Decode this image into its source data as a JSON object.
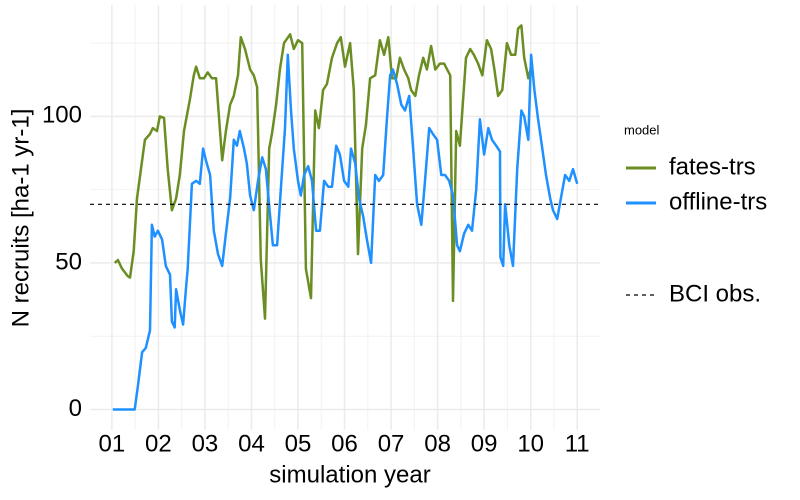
{
  "chart_data": {
    "type": "line",
    "xlabel": "simulation year",
    "ylabel": "N recruits [ha-1 yr-1]",
    "legend_title": "model",
    "legend": "right",
    "grid": true,
    "xlim": [
      0.53,
      11.49
    ],
    "ylim": [
      -7,
      138
    ],
    "xticks": [
      {
        "value": 1,
        "label": "01"
      },
      {
        "value": 2,
        "label": "02"
      },
      {
        "value": 3,
        "label": "03"
      },
      {
        "value": 4,
        "label": "04"
      },
      {
        "value": 5,
        "label": "05"
      },
      {
        "value": 6,
        "label": "06"
      },
      {
        "value": 7,
        "label": "07"
      },
      {
        "value": 8,
        "label": "08"
      },
      {
        "value": 9,
        "label": "09"
      },
      {
        "value": 10,
        "label": "10"
      },
      {
        "value": 11,
        "label": "11"
      }
    ],
    "xminorticks": [
      1.5,
      2.5,
      3.5,
      4.5,
      5.5,
      6.5,
      7.5,
      8.5,
      9.5,
      10.5
    ],
    "yticks": [
      0,
      50,
      100
    ],
    "yminorticks": [
      25,
      75,
      125
    ],
    "hline": {
      "name": "BCI obs.",
      "value": 70,
      "color": "#000000"
    },
    "series": [
      {
        "name": "fates-trs",
        "color": "#6b8e23",
        "x": [
          1.06,
          1.13,
          1.22,
          1.34,
          1.39,
          1.47,
          1.54,
          1.71,
          1.82,
          1.88,
          1.97,
          2.03,
          2.12,
          2.2,
          2.29,
          2.38,
          2.46,
          2.55,
          2.68,
          2.76,
          2.81,
          2.89,
          2.98,
          3.06,
          3.15,
          3.24,
          3.37,
          3.45,
          3.54,
          3.62,
          3.71,
          3.77,
          3.86,
          3.97,
          4.05,
          4.12,
          4.2,
          4.29,
          4.38,
          4.44,
          4.53,
          4.61,
          4.7,
          4.83,
          4.91,
          5.0,
          5.09,
          5.17,
          5.28,
          5.37,
          5.45,
          5.54,
          5.62,
          5.73,
          5.84,
          5.92,
          6.01,
          6.12,
          6.2,
          6.29,
          6.38,
          6.46,
          6.55,
          6.66,
          6.76,
          6.85,
          6.94,
          7.02,
          7.11,
          7.19,
          7.28,
          7.37,
          7.43,
          7.52,
          7.6,
          7.69,
          7.77,
          7.86,
          7.95,
          8.05,
          8.14,
          8.27,
          8.33,
          8.4,
          8.48,
          8.61,
          8.7,
          8.78,
          8.87,
          8.96,
          9.06,
          9.15,
          9.22,
          9.3,
          9.39,
          9.49,
          9.58,
          9.67,
          9.73,
          9.8,
          9.86,
          9.95,
          10.03
        ],
        "values": [
          50,
          51,
          48,
          45.5,
          45,
          54,
          72,
          92,
          94,
          96,
          95,
          100,
          99.5,
          82,
          68,
          72,
          80,
          95,
          106,
          114,
          117,
          113,
          113,
          115,
          113,
          113,
          85,
          95,
          104,
          107,
          114,
          127,
          123,
          116,
          114,
          110,
          51,
          31,
          89,
          94,
          104,
          116,
          125,
          128,
          123,
          126,
          125,
          48,
          38,
          102,
          96,
          109,
          111,
          120,
          125,
          127,
          117,
          125,
          109,
          53,
          89,
          97,
          113,
          114,
          126,
          121,
          127,
          113,
          113,
          120,
          116,
          113,
          109,
          107,
          114,
          120,
          116,
          124,
          116,
          118,
          118,
          114,
          37,
          95,
          90,
          120,
          123,
          121,
          118,
          114,
          126,
          123,
          116,
          107,
          109,
          125,
          121,
          121,
          130,
          131,
          120,
          113,
          118
        ]
      },
      {
        "name": "offline-trs",
        "color": "#1e90ff",
        "x": [
          1.02,
          1.49,
          1.56,
          1.65,
          1.73,
          1.82,
          1.86,
          1.92,
          1.99,
          2.08,
          2.16,
          2.25,
          2.29,
          2.35,
          2.38,
          2.46,
          2.53,
          2.59,
          2.63,
          2.72,
          2.81,
          2.89,
          2.96,
          3.02,
          3.11,
          3.19,
          3.28,
          3.37,
          3.45,
          3.54,
          3.62,
          3.69,
          3.75,
          3.84,
          3.9,
          3.97,
          4.05,
          4.14,
          4.23,
          4.31,
          4.4,
          4.46,
          4.55,
          4.63,
          4.72,
          4.78,
          4.85,
          4.91,
          5.0,
          5.06,
          5.13,
          5.22,
          5.3,
          5.39,
          5.47,
          5.56,
          5.65,
          5.73,
          5.82,
          5.9,
          5.99,
          6.08,
          6.14,
          6.23,
          6.31,
          6.4,
          6.48,
          6.57,
          6.66,
          6.74,
          6.83,
          6.91,
          6.98,
          7.04,
          7.13,
          7.22,
          7.3,
          7.39,
          7.47,
          7.56,
          7.65,
          7.73,
          7.82,
          7.9,
          7.99,
          8.08,
          8.16,
          8.25,
          8.33,
          8.42,
          8.48,
          8.57,
          8.66,
          8.74,
          8.83,
          8.91,
          9.0,
          9.09,
          9.17,
          9.26,
          9.34,
          9.35,
          9.41,
          9.45,
          9.54,
          9.62,
          9.71,
          9.8,
          9.86,
          9.95,
          10.01,
          10.08,
          10.16,
          10.25,
          10.33,
          10.42,
          10.48,
          10.57,
          10.66,
          10.74,
          10.83,
          10.91,
          11.0
        ],
        "values": [
          0,
          0,
          8,
          19.5,
          21,
          27,
          63,
          59,
          61,
          58,
          49,
          46,
          30,
          28,
          41,
          34,
          29,
          41,
          48,
          77,
          78,
          77,
          89,
          85,
          80,
          61,
          53,
          49,
          60,
          72,
          92,
          90,
          95,
          89,
          84,
          73,
          68,
          78,
          86,
          82,
          66,
          56,
          56,
          75,
          96,
          121,
          102,
          89,
          78,
          73,
          80,
          83,
          78,
          61,
          61,
          78,
          76,
          76,
          90,
          87,
          78,
          76,
          89,
          84,
          72,
          66,
          58,
          50,
          80,
          78,
          80,
          99,
          114,
          116,
          111,
          104,
          102,
          107,
          90,
          70,
          63,
          78,
          96,
          94,
          92,
          80,
          80,
          78,
          73,
          56,
          54,
          60,
          63,
          61,
          75,
          99,
          87,
          96,
          92,
          90,
          88,
          52,
          49,
          70,
          56,
          49,
          82,
          102,
          100,
          92,
          121,
          109,
          99,
          89,
          80,
          72,
          68,
          65,
          73,
          80,
          78,
          82,
          77
        ]
      }
    ]
  }
}
